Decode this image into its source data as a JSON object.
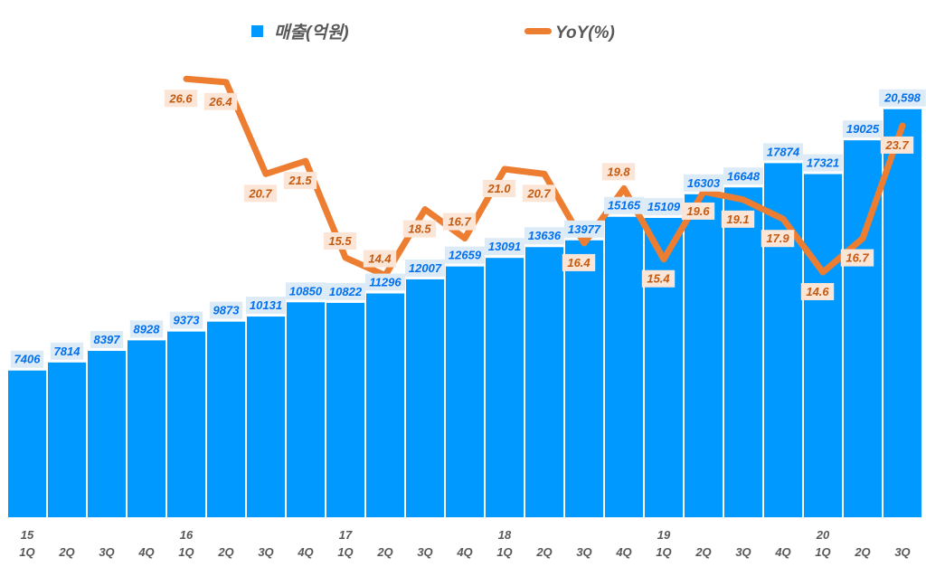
{
  "chart_data": {
    "type": "bar+line",
    "title": "",
    "legend": {
      "placement": "top",
      "entries": [
        "매출(억원)",
        "YoY(%)"
      ]
    },
    "categories": [
      "1Q",
      "2Q",
      "3Q",
      "4Q",
      "1Q",
      "2Q",
      "3Q",
      "4Q",
      "1Q",
      "2Q",
      "3Q",
      "4Q",
      "1Q",
      "2Q",
      "3Q",
      "4Q",
      "1Q",
      "2Q",
      "3Q",
      "4Q",
      "1Q",
      "2Q",
      "3Q"
    ],
    "year_labels": [
      "15",
      "",
      "",
      "",
      "16",
      "",
      "",
      "",
      "17",
      "",
      "",
      "",
      "18",
      "",
      "",
      "",
      "19",
      "",
      "",
      "",
      "20",
      "",
      ""
    ],
    "series": [
      {
        "name": "매출(억원)",
        "type": "bar",
        "color": "#0099FF",
        "values": [
          7406,
          7814,
          8397,
          8928,
          9373,
          9873,
          10131,
          10850,
          10822,
          11296,
          12007,
          12659,
          13091,
          13636,
          13977,
          15165,
          15109,
          16303,
          16648,
          17874,
          17321,
          19025,
          20598
        ],
        "labels": [
          "7406",
          "7814",
          "8397",
          "8928",
          "9373",
          "9873",
          "10131",
          "10850",
          "10822",
          "11296",
          "12007",
          "12659",
          "13091",
          "13636",
          "13977",
          "15165",
          "15109",
          "16303",
          "16648",
          "17874",
          "17321",
          "19025",
          "20,598"
        ]
      },
      {
        "name": "YoY(%)",
        "type": "line",
        "color": "#ED7D31",
        "values": [
          null,
          null,
          null,
          null,
          26.6,
          26.4,
          20.7,
          21.5,
          15.5,
          14.4,
          18.5,
          16.7,
          21.0,
          20.7,
          16.4,
          19.8,
          15.4,
          19.6,
          19.1,
          17.9,
          14.6,
          16.7,
          23.7
        ],
        "labels": [
          "",
          "",
          "",
          "",
          "26.6",
          "26.4",
          "20.7",
          "21.5",
          "15.5",
          "14.4",
          "18.5",
          "16.7",
          "21.0",
          "20.7",
          "16.4",
          "19.8",
          "15.4",
          "19.6",
          "19.1",
          "17.9",
          "14.6",
          "16.7",
          "23.7"
        ]
      }
    ],
    "ylim": [
      0,
      22000
    ],
    "y2lim": [
      0,
      31.5
    ],
    "grid": false
  }
}
